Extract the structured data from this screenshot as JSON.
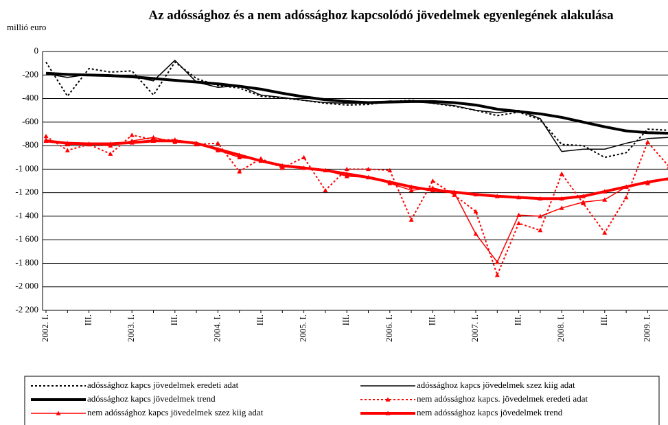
{
  "chart_data": {
    "type": "line",
    "title": "Az adóssághoz  és a nem adóssághoz kapcsolódó jövedelmek egyenlegének alakulása",
    "y_axis_label": "millió euro",
    "categories": [
      "2002. I.",
      null,
      "III.",
      null,
      "2003. I.",
      null,
      "III.",
      null,
      "2004. I.",
      null,
      "III.",
      null,
      "2005. I.",
      null,
      "III.",
      null,
      "2006. I.",
      null,
      "III.",
      null,
      "2007. I.",
      null,
      "III.",
      null,
      "2008. I.",
      null,
      "III.",
      null,
      "2009. I.",
      null
    ],
    "ylim": [
      -2200,
      0
    ],
    "yticks": [
      0,
      -200,
      -400,
      -600,
      -800,
      {
        "value": -1000,
        "label": "-1 000"
      },
      {
        "value": -1200,
        "label": "-1 200"
      },
      {
        "value": -1400,
        "label": "-1 400"
      },
      {
        "value": -1600,
        "label": "-1 600"
      },
      {
        "value": -1800,
        "label": "-1 800"
      },
      {
        "value": -2000,
        "label": "-2 000"
      },
      {
        "value": -2200,
        "label": "-2 200"
      }
    ],
    "grid": true,
    "legend": "bottom",
    "series": [
      {
        "name": "adóssághoz kapcs jövedelmek eredeti adat",
        "color": "#000000",
        "line_style": "dotted",
        "values": [
          -90,
          -380,
          -145,
          -175,
          -165,
          -370,
          -90,
          -230,
          -290,
          -310,
          -380,
          -395,
          -415,
          -440,
          -455,
          -450,
          -425,
          -415,
          -440,
          -465,
          -500,
          -545,
          -515,
          -580,
          -790,
          -800,
          -900,
          -860,
          -660,
          -670
        ]
      },
      {
        "name": "adóssághoz kapcs jövedelmek  szez kiig adat",
        "color": "#000000",
        "line_style": "solid",
        "values": [
          -190,
          -220,
          -195,
          -200,
          -210,
          -250,
          -75,
          -260,
          -305,
          -290,
          -370,
          -390,
          -415,
          -435,
          -440,
          -440,
          -420,
          -425,
          -440,
          -460,
          -500,
          -520,
          -500,
          -570,
          -850,
          -830,
          -830,
          -780,
          -740,
          -730
        ]
      },
      {
        "name": "adóssághoz kapcs jövedelmek  trend",
        "color": "#000000",
        "line_style": "thick",
        "values": [
          -185,
          -195,
          -200,
          -205,
          -215,
          -230,
          -245,
          -260,
          -275,
          -295,
          -320,
          -355,
          -385,
          -410,
          -425,
          -435,
          -430,
          -425,
          -425,
          -435,
          -455,
          -490,
          -510,
          -530,
          -560,
          -600,
          -640,
          -675,
          -690,
          -695
        ]
      },
      {
        "name": "nem adóssághoz kapcs. jövedelmek  eredeti adat",
        "color": "#ff0000",
        "line_style": "dotted",
        "marker": "triangle",
        "values": [
          -720,
          -840,
          -790,
          -870,
          -710,
          -750,
          -750,
          -790,
          -780,
          -1020,
          -910,
          -990,
          -900,
          -1180,
          -1000,
          -1000,
          -1010,
          -1430,
          -1100,
          -1220,
          -1360,
          -1900,
          -1460,
          -1520,
          -1040,
          -1290,
          -1540,
          -1240,
          -770,
          -980
        ]
      },
      {
        "name": "nem adóssághoz kapcs jövedelmek szez kiig adat",
        "color": "#ff0000",
        "line_style": "solid",
        "marker": "triangle",
        "values": [
          -750,
          -790,
          -790,
          -800,
          -760,
          -730,
          -770,
          -780,
          -840,
          -900,
          -920,
          -980,
          -990,
          -1010,
          -1060,
          -1070,
          -1120,
          -1180,
          -1160,
          -1200,
          -1550,
          -1790,
          -1390,
          -1400,
          -1330,
          -1280,
          -1260,
          -1150,
          -1120,
          -1080
        ]
      },
      {
        "name": "nem adóssághoz kapcs jövedelmek  trend",
        "color": "#ff0000",
        "line_style": "thick",
        "marker": "triangle",
        "values": [
          -760,
          -780,
          -785,
          -785,
          -775,
          -760,
          -760,
          -780,
          -830,
          -880,
          -930,
          -970,
          -990,
          -1010,
          -1040,
          -1070,
          -1110,
          -1150,
          -1180,
          -1195,
          -1215,
          -1230,
          -1240,
          -1250,
          -1250,
          -1230,
          -1190,
          -1150,
          -1110,
          -1080
        ]
      }
    ]
  }
}
